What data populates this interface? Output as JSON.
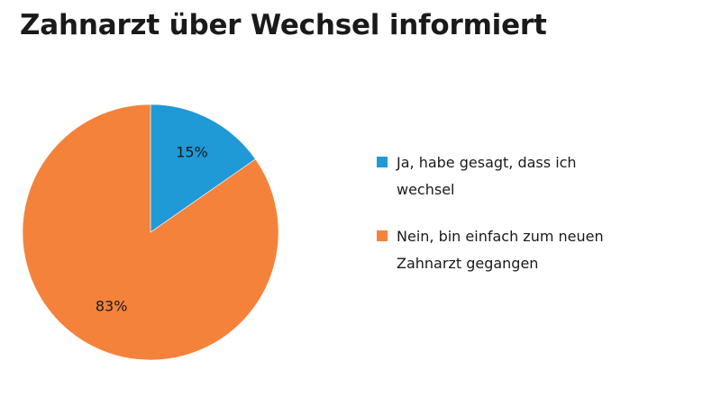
{
  "chart_data": {
    "type": "pie",
    "title": "Zahnarzt über Wechsel  informiert",
    "categories": [
      "Ja, habe gesagt, dass ich wechsel",
      "Nein, bin einfach zum neuen Zahnarzt gegangen"
    ],
    "values": [
      15,
      83
    ],
    "data_labels": [
      "15%",
      "83%"
    ],
    "colors": [
      "#1f9ad6",
      "#f5823a"
    ],
    "legend_position": "right"
  }
}
